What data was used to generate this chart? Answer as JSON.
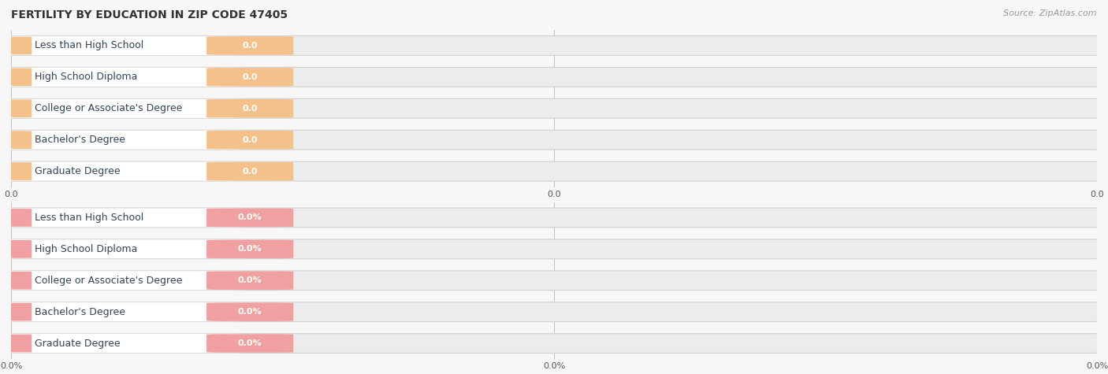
{
  "title": "FERTILITY BY EDUCATION IN ZIP CODE 47405",
  "source": "Source: ZipAtlas.com",
  "categories": [
    "Less than High School",
    "High School Diploma",
    "College or Associate's Degree",
    "Bachelor's Degree",
    "Graduate Degree"
  ],
  "top_values": [
    0.0,
    0.0,
    0.0,
    0.0,
    0.0
  ],
  "bottom_values": [
    0.0,
    0.0,
    0.0,
    0.0,
    0.0
  ],
  "top_bar_color": "#F5C18A",
  "bottom_bar_color": "#F0A0A0",
  "top_value_label_suffix": "",
  "bottom_value_label_suffix": "%",
  "background_color": "#f7f7f7",
  "row_bg_color": "#e8e8e8",
  "white_bar_color": "#ffffff",
  "title_fontsize": 10,
  "source_fontsize": 8,
  "label_fontsize": 9,
  "value_fontsize": 8
}
